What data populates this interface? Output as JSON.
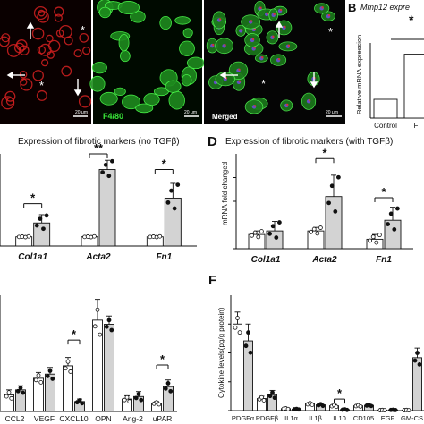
{
  "panel_micro": {
    "scale_bar": "20 μm",
    "red_label": "",
    "green_label": "F4/80",
    "merged_label": "Merged"
  },
  "panel_B": {
    "letter": "B",
    "title": "Mmp12 expre",
    "ylabel": "Relative mRNA expression",
    "sig": "*",
    "categories": [
      "Control",
      "F"
    ]
  },
  "panel_C": {
    "title": "Expression of fibrotic markers (no TGFβ)",
    "categories": [
      "Col1a1",
      "Acta2",
      "Fn1"
    ],
    "sigs": [
      "*",
      "**",
      "*"
    ]
  },
  "panel_D": {
    "letter": "D",
    "title": "Expression of fibrotic markers (with TGFβ)",
    "ylabel": "mRNA fold changed",
    "categories": [
      "Col1a1",
      "Acta2",
      "Fn1"
    ],
    "sigs": [
      "*",
      "*"
    ]
  },
  "panel_E": {
    "categories": [
      "CCL2",
      "VEGF",
      "CXCL10",
      "OPN",
      "Ang-2",
      "uPAR"
    ],
    "sigs": [
      "*",
      "*"
    ]
  },
  "panel_F": {
    "letter": "F",
    "ylabel": "Cytokine levels(pg/g protein)",
    "categories": [
      "PDGFα",
      "PDGFβ",
      "IL1α",
      "IL1β",
      "IL10",
      "CD105",
      "EGF",
      "GM-CS"
    ],
    "sigs": [
      "*"
    ]
  },
  "chart_data": [
    {
      "type": "bar",
      "panel": "B",
      "title": "Mmp12 expre",
      "ylabel": "Relative mRNA expression",
      "categories": [
        "Control",
        "F"
      ],
      "values": [
        1.0,
        3.4
      ],
      "ylim": [
        0,
        4
      ]
    },
    {
      "type": "bar",
      "panel": "C",
      "title": "Expression of fibrotic markers (no TGFβ)",
      "categories": [
        "Col1a1",
        "Acta2",
        "Fn1"
      ],
      "ylim": [
        0,
        10
      ],
      "series": [
        {
          "values": [
            1.0,
            1.0,
            1.0
          ],
          "errors": [
            0.05,
            0.05,
            0.05
          ]
        },
        {
          "values": [
            2.5,
            8.3,
            5.2
          ],
          "errors": [
            0.9,
            1.0,
            1.6
          ]
        }
      ]
    },
    {
      "type": "bar",
      "panel": "D",
      "title": "Expression of fibrotic markers (with TGFβ)",
      "ylabel": "mRNA fold changed",
      "categories": [
        "Col1a1",
        "Acta2",
        "Fn1"
      ],
      "ylim": [
        0,
        80
      ],
      "series": [
        {
          "values": [
            12,
            15,
            8
          ],
          "errors": [
            3,
            3,
            4
          ]
        },
        {
          "values": [
            15,
            44,
            24
          ],
          "errors": [
            8,
            18,
            11
          ]
        }
      ]
    },
    {
      "type": "bar",
      "panel": "E",
      "categories": [
        "CCL2",
        "VEGF",
        "CXCL10",
        "OPN",
        "Ang-2",
        "uPAR"
      ],
      "ylim": [
        0,
        14
      ],
      "series": [
        {
          "values": [
            2.0,
            4.0,
            5.5,
            11.0,
            1.5,
            1.0
          ],
          "errors": [
            0.6,
            0.7,
            1.0,
            2.5,
            0.4,
            0.2
          ]
        },
        {
          "values": [
            2.6,
            4.5,
            1.2,
            10.5,
            1.8,
            3.0
          ],
          "errors": [
            0.5,
            0.8,
            0.3,
            1.0,
            0.6,
            0.8
          ]
        }
      ]
    },
    {
      "type": "bar",
      "panel": "F",
      "ylabel": "Cytokine levels(pg/g protein)",
      "categories": [
        "PDGFα",
        "PDGFβ",
        "IL1α",
        "IL1β",
        "IL10",
        "CD105",
        "EGF",
        "GM-CS"
      ],
      "ylim": [
        0,
        240
      ],
      "series": [
        {
          "values": [
            180,
            25,
            4,
            14,
            10,
            10,
            1,
            1
          ],
          "errors": [
            25,
            5,
            1,
            3,
            3,
            2,
            0.5,
            0.5
          ]
        },
        {
          "values": [
            145,
            33,
            3,
            12,
            2,
            11,
            1.5,
            110
          ],
          "errors": [
            35,
            9,
            1,
            3,
            1,
            2,
            0.5,
            20
          ]
        }
      ]
    }
  ]
}
